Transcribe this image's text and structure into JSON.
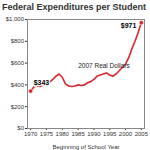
{
  "chart_data": {
    "type": "line",
    "title": "Federal Expenditures per Student",
    "x_label": "Beginning of School Year",
    "x": [
      1970,
      1971,
      1972,
      1973,
      1974,
      1975,
      1976,
      1977,
      1978,
      1979,
      1980,
      1981,
      1982,
      1983,
      1984,
      1985,
      1986,
      1987,
      1988,
      1989,
      1990,
      1991,
      1992,
      1993,
      1994,
      1995,
      1996,
      1997,
      1998,
      1999,
      2000,
      2001,
      2002,
      2003,
      2004,
      2005
    ],
    "values": [
      343,
      380,
      390,
      385,
      400,
      430,
      425,
      450,
      480,
      500,
      470,
      410,
      390,
      385,
      390,
      400,
      395,
      400,
      420,
      430,
      450,
      480,
      490,
      500,
      510,
      490,
      480,
      500,
      530,
      560,
      590,
      650,
      730,
      800,
      880,
      971
    ],
    "color": "#d9262b",
    "xlim": [
      1969,
      2006
    ],
    "xticks": [
      1970,
      1975,
      1980,
      1985,
      1990,
      1995,
      2000,
      2005
    ],
    "ylim": [
      0,
      1000
    ],
    "yticks": [
      {
        "value": 0,
        "label": "$0"
      },
      {
        "value": 200,
        "label": "$200"
      },
      {
        "value": 400,
        "label": "$400"
      },
      {
        "value": 600,
        "label": "$600"
      },
      {
        "value": 800,
        "label": "$800"
      },
      {
        "value": 1000,
        "label": "$1,000"
      }
    ],
    "grid": false,
    "annotations": [
      {
        "x": 1970,
        "y": 343,
        "text": "$343"
      },
      {
        "x": 2005,
        "y": 971,
        "text": "$971"
      }
    ],
    "note": "2007 Real Dollars"
  }
}
